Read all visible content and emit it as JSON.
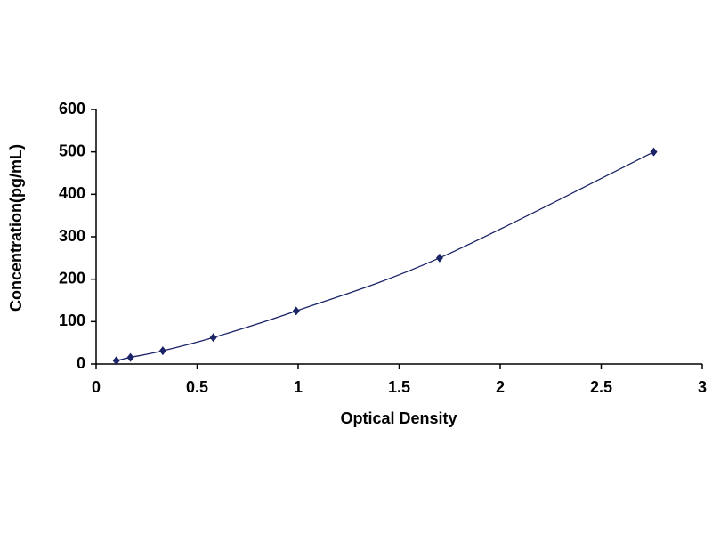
{
  "chart_data": {
    "type": "scatter",
    "x_label": "Optical Density",
    "y_label": "Concentration(pg/mL)",
    "x": [
      0.1,
      0.17,
      0.33,
      0.58,
      0.99,
      1.7,
      2.76
    ],
    "values": [
      7.8,
      15.6,
      31.25,
      62.5,
      125,
      250,
      500
    ],
    "color": "#1a2466",
    "line": "smooth",
    "xlim": [
      0,
      3
    ],
    "xticks": [
      0,
      0.5,
      1,
      1.5,
      2,
      2.5,
      3
    ],
    "ylim": [
      0,
      600
    ],
    "yticks": [
      0,
      100,
      200,
      300,
      400,
      500,
      600
    ],
    "grid": false
  }
}
